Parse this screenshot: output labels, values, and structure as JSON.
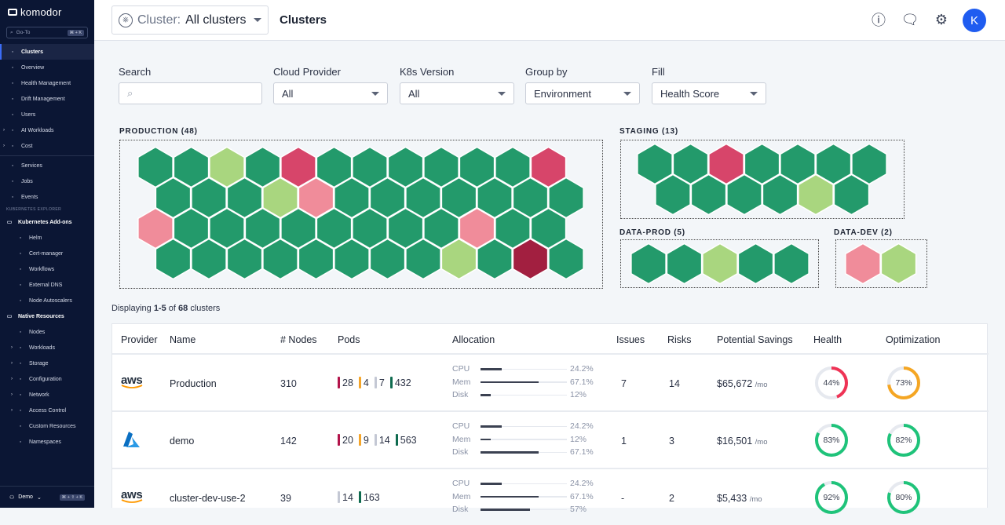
{
  "sidebar": {
    "brand": "komodor",
    "goto": {
      "placeholder": "Go-To",
      "shortcut": "⌘ + K"
    },
    "items": [
      {
        "label": "Clusters",
        "icon": "clusters-icon",
        "active": true
      },
      {
        "label": "Overview",
        "icon": "gauge-icon"
      },
      {
        "label": "Health Management",
        "icon": "health-icon"
      },
      {
        "label": "Drift Management",
        "icon": "shuffle-icon"
      },
      {
        "label": "Users",
        "icon": "users-icon"
      },
      {
        "label": "AI Workloads",
        "icon": "ai-icon",
        "expandable": true
      },
      {
        "label": "Cost",
        "icon": "dollar-icon",
        "expandable": true
      }
    ],
    "items2": [
      {
        "label": "Services",
        "icon": "grid-icon"
      },
      {
        "label": "Jobs",
        "icon": "jobs-icon"
      },
      {
        "label": "Events",
        "icon": "clock-icon"
      }
    ],
    "section_title": "KUBERNETES EXPLORER",
    "addons": {
      "label": "Kubernetes Add-ons",
      "children": [
        "Helm",
        "Cert-manager",
        "Workflows",
        "External DNS",
        "Node Autoscalers"
      ]
    },
    "native": {
      "label": "Native Resources",
      "children": [
        {
          "label": "Nodes"
        },
        {
          "label": "Workloads",
          "expandable": true
        },
        {
          "label": "Storage",
          "expandable": true
        },
        {
          "label": "Configuration",
          "expandable": true
        },
        {
          "label": "Network",
          "expandable": true
        },
        {
          "label": "Access Control",
          "expandable": true
        },
        {
          "label": "Custom Resources"
        },
        {
          "label": "Namespaces"
        }
      ]
    },
    "footer": {
      "account": "Demo",
      "shortcut": "⌘ + ⇧ + K"
    }
  },
  "topbar": {
    "cluster_label": "Cluster:",
    "cluster_value": "All clusters",
    "title": "Clusters",
    "avatar": "K"
  },
  "filters": {
    "search": {
      "label": "Search",
      "placeholder": ""
    },
    "cloud_provider": {
      "label": "Cloud Provider",
      "value": "All"
    },
    "k8s_version": {
      "label": "K8s Version",
      "value": "All"
    },
    "group_by": {
      "label": "Group by",
      "value": "Environment"
    },
    "fill": {
      "label": "Fill",
      "value": "Health Score"
    }
  },
  "status_colors": {
    "healthy": "#239a6b",
    "good": "#a9d67f",
    "warning": "#f08c9a",
    "critical": "#d7456a",
    "severe": "#a21f40"
  },
  "groups": [
    {
      "name": "PRODUCTION (48)",
      "rows": [
        [
          "healthy",
          "healthy",
          "good",
          "healthy",
          "critical",
          "healthy",
          "healthy",
          "healthy",
          "healthy",
          "healthy",
          "healthy",
          "critical"
        ],
        [
          "healthy",
          "healthy",
          "healthy",
          "good",
          "warning",
          "healthy",
          "healthy",
          "healthy",
          "healthy",
          "healthy",
          "healthy",
          "healthy"
        ],
        [
          "warning",
          "healthy",
          "healthy",
          "healthy",
          "healthy",
          "healthy",
          "healthy",
          "healthy",
          "healthy",
          "warning",
          "healthy",
          "healthy"
        ],
        [
          "healthy",
          "healthy",
          "healthy",
          "healthy",
          "healthy",
          "healthy",
          "healthy",
          "healthy",
          "good",
          "healthy",
          "severe",
          "healthy"
        ]
      ]
    },
    {
      "name": "STAGING (13)",
      "rows": [
        [
          "healthy",
          "healthy",
          "critical",
          "healthy",
          "healthy",
          "healthy",
          "healthy"
        ],
        [
          "healthy",
          "healthy",
          "healthy",
          "healthy",
          "good",
          "healthy"
        ]
      ]
    },
    {
      "name": "DATA-PROD (5)",
      "rows": [
        [
          "healthy",
          "healthy",
          "good",
          "healthy",
          "healthy"
        ]
      ]
    },
    {
      "name": "DATA-DEV (2)",
      "rows": [
        [
          "warning",
          "good"
        ]
      ]
    }
  ],
  "display": {
    "prefix": "Displaying",
    "range": "1-5",
    "of": "of",
    "total": "68",
    "suffix": "clusters"
  },
  "table": {
    "headers": [
      "Provider",
      "Name",
      "# Nodes",
      "Pods",
      "Allocation",
      "Issues",
      "Risks",
      "Potential Savings",
      "Health",
      "Optimization"
    ],
    "pod_colors": [
      "#b3144a",
      "#f4a52a",
      "#c4c8d4",
      "#0f6b4f"
    ],
    "rows": [
      {
        "provider": "aws",
        "name": "Production",
        "nodes": "310",
        "pods": [
          "28",
          "4",
          "7",
          "432"
        ],
        "alloc": [
          {
            "label": "CPU",
            "value": "24.2%",
            "pct": 24.2
          },
          {
            "label": "Mem",
            "value": "67.1%",
            "pct": 67.1
          },
          {
            "label": "Disk",
            "value": "12%",
            "pct": 12
          }
        ],
        "issues": "7",
        "risks": "14",
        "savings": "$65,672",
        "per": "/mo",
        "health": {
          "value": "44%",
          "pct": 44,
          "color": "#ef3355"
        },
        "optimization": {
          "value": "73%",
          "pct": 73,
          "color": "#f5a623"
        }
      },
      {
        "provider": "azure",
        "name": "demo",
        "nodes": "142",
        "pods": [
          "20",
          "9",
          "14",
          "563"
        ],
        "alloc": [
          {
            "label": "CPU",
            "value": "24.2%",
            "pct": 24.2
          },
          {
            "label": "Mem",
            "value": "12%",
            "pct": 12
          },
          {
            "label": "Disk",
            "value": "67.1%",
            "pct": 67.1
          }
        ],
        "issues": "1",
        "risks": "3",
        "savings": "$16,501",
        "per": "/mo",
        "health": {
          "value": "83%",
          "pct": 83,
          "color": "#1fc37a"
        },
        "optimization": {
          "value": "82%",
          "pct": 82,
          "color": "#1fc37a"
        }
      },
      {
        "provider": "aws",
        "name": "cluster-dev-use-2",
        "nodes": "39",
        "pods": [
          null,
          null,
          "14",
          "163"
        ],
        "alloc": [
          {
            "label": "CPU",
            "value": "24.2%",
            "pct": 24.2
          },
          {
            "label": "Mem",
            "value": "67.1%",
            "pct": 67.1
          },
          {
            "label": "Disk",
            "value": "57%",
            "pct": 57
          }
        ],
        "issues": "-",
        "risks": "2",
        "savings": "$5,433",
        "per": "/mo",
        "health": {
          "value": "92%",
          "pct": 92,
          "color": "#1fc37a"
        },
        "optimization": {
          "value": "80%",
          "pct": 80,
          "color": "#1fc37a"
        }
      }
    ]
  }
}
